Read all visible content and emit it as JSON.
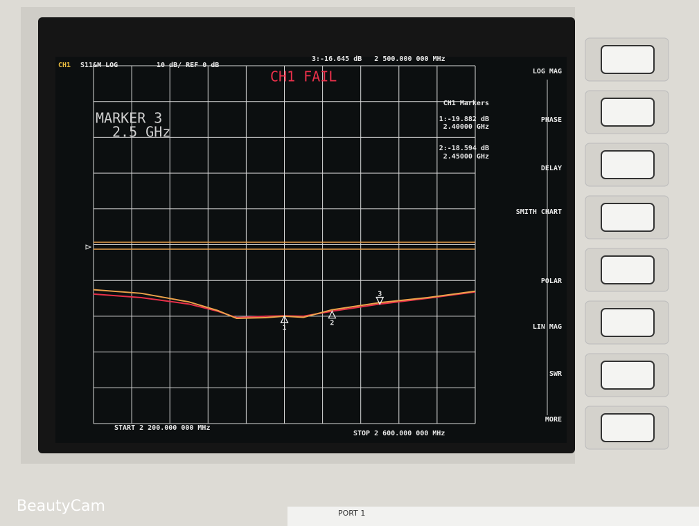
{
  "screen": {
    "channel": "CH1",
    "measurement": "S11&M LOG",
    "scale": "10 dB/ REF 0 dB",
    "active_marker": "3:-16.645 dB   2 500.000 000 MHz",
    "status": "CH1 FAIL",
    "marker_note": [
      "MARKER 3",
      "2.5 GHz"
    ],
    "marker_table": {
      "title": "CH1 Markers",
      "entries": [
        [
          "1:-19.882 dB",
          "2.40000 GHz"
        ],
        [
          "2:-18.594 dB",
          "2.45000 GHz"
        ]
      ]
    },
    "start": "START 2 200.000 000 MHz",
    "stop": "STOP 2 600.000 000 MHz"
  },
  "softkeys": [
    "LOG MAG",
    "PHASE",
    "DELAY",
    "SMITH CHART",
    "POLAR",
    "LIN MAG",
    "SWR",
    "MORE"
  ],
  "chart_data": {
    "type": "line",
    "x": [
      2200,
      2250,
      2300,
      2330,
      2350,
      2380,
      2400,
      2420,
      2450,
      2500,
      2550,
      2600
    ],
    "xlim": [
      2200,
      2600
    ],
    "ylim": [
      -50,
      50
    ],
    "series": [
      {
        "color": "#e8304a",
        "values": [
          -13.8,
          -14.8,
          -16.6,
          -18.6,
          -20.4,
          -20.0,
          -19.9,
          -20.0,
          -18.6,
          -16.6,
          -15.0,
          -13.2
        ]
      },
      {
        "color": "#eba24a",
        "values": [
          -12.6,
          -13.6,
          -16.0,
          -18.4,
          -20.6,
          -20.4,
          -20.0,
          -20.3,
          -18.2,
          -16.2,
          -14.8,
          -13.0
        ]
      }
    ],
    "markers": [
      {
        "label": "1",
        "x": 2400,
        "value": -19.882
      },
      {
        "label": "2",
        "x": 2450,
        "value": -18.594
      },
      {
        "label": "3",
        "x": 2500,
        "value": -16.645
      }
    ]
  },
  "footer": {
    "port": "PORT 1",
    "watermark": "BeautyCam"
  }
}
